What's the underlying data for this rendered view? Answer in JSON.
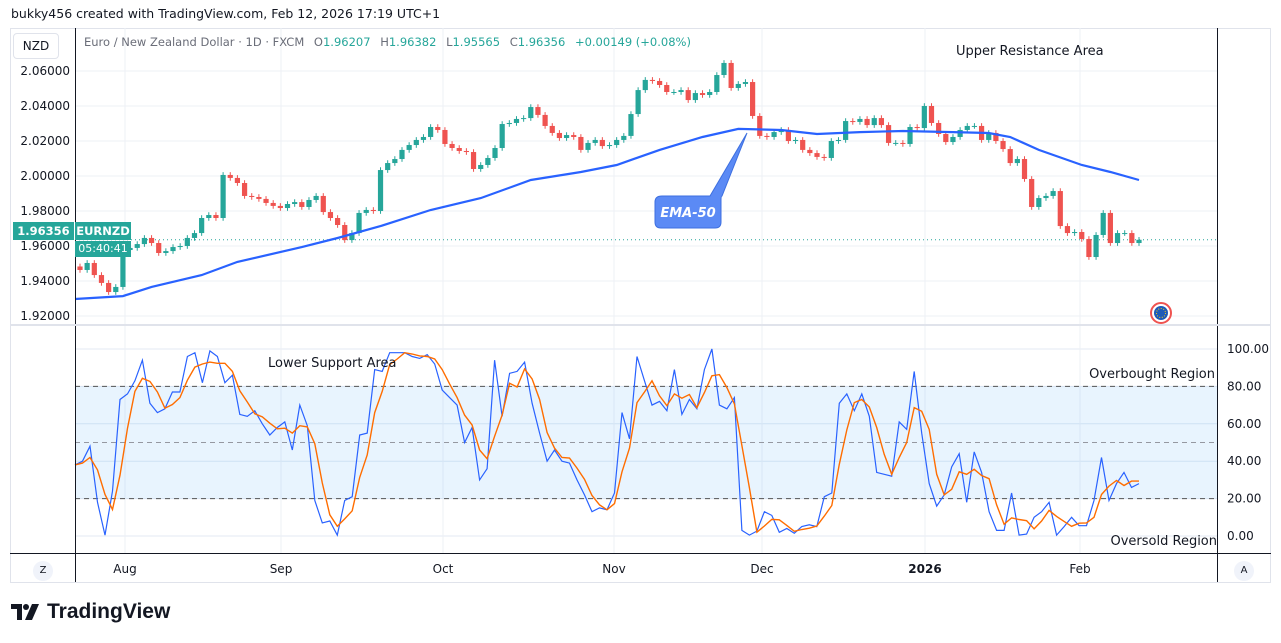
{
  "header": {
    "credit": "bukky456 created with TradingView.com, Feb 12, 2026 17:19 UTC+1",
    "currency_button": "NZD",
    "instrument": "Euro / New Zealand Dollar · 1D · FXCM",
    "open_label": "O",
    "open": "1.96207",
    "high_label": "H",
    "high": "1.96382",
    "low_label": "L",
    "low": "1.95565",
    "close_label": "C",
    "close": "1.96356",
    "change": "+0.00149 (+0.08%)"
  },
  "last_price": {
    "price": "1.96356",
    "countdown": "05:40:41",
    "symbol": "EURNZD"
  },
  "buttons": {
    "z": "Z",
    "a": "A"
  },
  "branding": {
    "logo_text": "TradingView"
  },
  "colors": {
    "up": "#26a69a",
    "down": "#ef5350",
    "ema": "#2962ff",
    "stoch_k": "#2962ff",
    "stoch_d": "#ff6d00",
    "band": "#2196f3"
  },
  "icons": {
    "indicator_badge": "eu-flag-icon",
    "logo": "tradingview-logo-icon"
  },
  "chart_data": {
    "type": "candlestick",
    "symbol": "EURNZD",
    "interval": "1D",
    "grid": true,
    "price_axis": {
      "ticks": [
        "2.06000",
        "2.04000",
        "2.02000",
        "2.00000",
        "1.98000",
        "1.96000",
        "1.94000",
        "1.92000"
      ],
      "range": [
        1.915,
        2.07
      ]
    },
    "time_axis": {
      "ticks": [
        "Aug",
        "Sep",
        "Oct",
        "Nov",
        "Dec",
        "2026",
        "Feb"
      ]
    },
    "close": [
      1.9463,
      1.9503,
      1.9434,
      1.9389,
      1.9337,
      1.9366,
      1.9577,
      1.9589,
      1.9611,
      1.9646,
      1.9617,
      1.956,
      1.9571,
      1.9594,
      1.96,
      1.9646,
      1.9674,
      1.976,
      1.9777,
      1.976,
      2.0006,
      1.9989,
      1.996,
      1.9886,
      1.988,
      1.9869,
      1.9846,
      1.9829,
      1.9817,
      1.984,
      1.9851,
      1.9823,
      1.9863,
      1.9886,
      1.9794,
      1.976,
      1.972,
      1.9634,
      1.9674,
      1.9789,
      1.9806,
      1.98,
      2.0034,
      2.0074,
      2.0097,
      2.0149,
      2.0177,
      2.0206,
      2.0223,
      2.028,
      2.0263,
      2.0183,
      2.016,
      2.0143,
      2.0137,
      2.004,
      2.0063,
      2.0103,
      2.016,
      2.0297,
      2.0303,
      2.0326,
      2.0331,
      2.0394,
      2.0349,
      2.0286,
      2.0246,
      2.0217,
      2.0234,
      2.0223,
      2.0149,
      2.0189,
      2.0206,
      2.0171,
      2.0177,
      2.0206,
      2.0229,
      2.0354,
      2.0491,
      2.0549,
      2.0543,
      2.052,
      2.048,
      2.048,
      2.0491,
      2.0434,
      2.0474,
      2.0463,
      2.048,
      2.0577,
      2.0646,
      2.0503,
      2.0526,
      2.0537,
      2.0343,
      2.0229,
      2.0223,
      2.0251,
      2.0263,
      2.02,
      2.0206,
      2.0149,
      2.0131,
      2.0109,
      2.0103,
      2.02,
      2.0206,
      2.0314,
      2.0309,
      2.0326,
      2.0291,
      2.0331,
      2.0291,
      2.0189,
      2.0189,
      2.0183,
      2.028,
      2.0274,
      2.04,
      2.0303,
      2.024,
      2.0194,
      2.0223,
      2.0263,
      2.0286,
      2.0286,
      2.0206,
      2.0246,
      2.02,
      2.0154,
      2.0074,
      2.0097,
      1.9983,
      1.9823,
      1.9874,
      1.9886,
      1.9914,
      1.9714,
      1.9674,
      1.968,
      1.964,
      1.9537,
      1.9663,
      1.9789,
      1.9617,
      1.9674,
      1.9674,
      1.9617,
      1.96356
    ],
    "ema50": {
      "label": "EMA-50",
      "points": [
        [
          0,
          1.9297
        ],
        [
          6,
          1.9314
        ],
        [
          10,
          1.9366
        ],
        [
          17,
          1.9434
        ],
        [
          22,
          1.9509
        ],
        [
          31,
          1.9594
        ],
        [
          36,
          1.9646
        ],
        [
          42,
          1.9714
        ],
        [
          49,
          1.9806
        ],
        [
          56,
          1.9874
        ],
        [
          63,
          1.9977
        ],
        [
          70,
          2.0023
        ],
        [
          75,
          2.0063
        ],
        [
          81,
          2.0149
        ],
        [
          87,
          2.0223
        ],
        [
          92,
          2.0269
        ],
        [
          98,
          2.0263
        ],
        [
          103,
          2.024
        ],
        [
          109,
          2.0251
        ],
        [
          115,
          2.0257
        ],
        [
          122,
          2.0251
        ],
        [
          127,
          2.0246
        ],
        [
          130,
          2.0223
        ],
        [
          134,
          2.0149
        ],
        [
          140,
          2.0063
        ],
        [
          144,
          2.0023
        ],
        [
          148,
          1.9977
        ]
      ]
    },
    "stochastic": {
      "ticks": [
        "100.00",
        "80.00",
        "60.00",
        "40.00",
        "20.00",
        "0.00"
      ],
      "range": [
        0,
        100
      ],
      "levels": [
        20,
        50,
        80
      ],
      "k": [
        38,
        40,
        48,
        18,
        0.5,
        24,
        73,
        76,
        83,
        94,
        71,
        66,
        68,
        77,
        77,
        96,
        98,
        82,
        99,
        96,
        82,
        86,
        65,
        64,
        67,
        60,
        54,
        58,
        61,
        46,
        70,
        59,
        19,
        7,
        8,
        0.5,
        19,
        21,
        54,
        55,
        89,
        88,
        98,
        98,
        98,
        96,
        95,
        97,
        92,
        78,
        74,
        70,
        50,
        58,
        30,
        36,
        94,
        64,
        87,
        88,
        93,
        71,
        55,
        40,
        46,
        40,
        39,
        30,
        22,
        13,
        15,
        14,
        23,
        66,
        52,
        96,
        83,
        70,
        72,
        67,
        89,
        65,
        73,
        68,
        89,
        100,
        70,
        68,
        74,
        3,
        0.5,
        2.6,
        13,
        11,
        2,
        4,
        1.5,
        5,
        6,
        5,
        21,
        23,
        71,
        76,
        67,
        76,
        64,
        34,
        33,
        32,
        61,
        57,
        88,
        55,
        28,
        16,
        22,
        37,
        44,
        18,
        45,
        34,
        13,
        3,
        3,
        23,
        0.5,
        1,
        10,
        13,
        18,
        0.5,
        5,
        10,
        5.5,
        5.5,
        19,
        42,
        19,
        28,
        34,
        26,
        28
      ]
    },
    "annotations": {
      "upper": "Upper Resistance Area",
      "lower": "Lower Support Area",
      "overbought": "Overbought Region",
      "oversold": "Oversold Region",
      "ema_callout": "EMA-50"
    }
  }
}
